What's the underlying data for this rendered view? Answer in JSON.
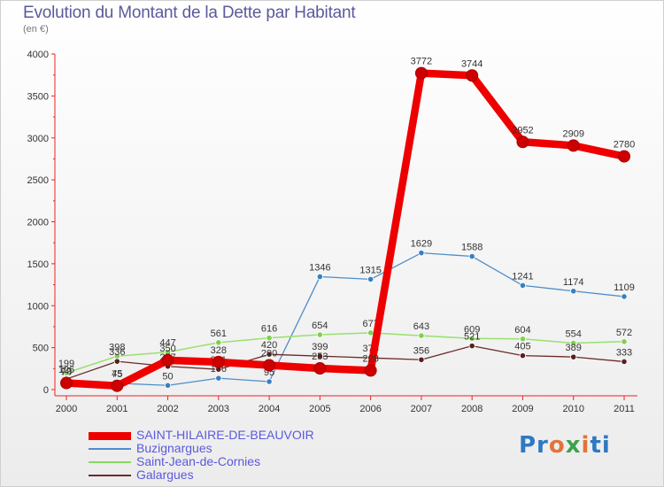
{
  "title": "Evolution du Montant de la Dette par Habitant",
  "subtitle": "(en €)",
  "brand": "Proxiti",
  "chart_data": {
    "type": "line",
    "title": "Evolution du Montant de la Dette par Habitant",
    "subtitle": "(en €)",
    "xlabel": "",
    "ylabel": "",
    "x": [
      "2000",
      "2001",
      "2002",
      "2003",
      "2004",
      "2005",
      "2006",
      "2007",
      "2008",
      "2009",
      "2010",
      "2011"
    ],
    "ylim": [
      0,
      4000
    ],
    "yticks": [
      0,
      500,
      1000,
      1500,
      2000,
      2500,
      3000,
      3500,
      4000
    ],
    "grid": false,
    "legend_position": "bottom",
    "series": [
      {
        "name": "SAINT-HILAIRE-DE-BEAUVOIR",
        "color": "#ee0000",
        "values": [
          79,
          45,
          350,
          328,
          290,
          253,
          228,
          3772,
          3744,
          2952,
          2909,
          2780
        ],
        "labels": [
          "79",
          "45",
          "350",
          "328",
          "290",
          "253",
          "228",
          "3772",
          "3744",
          "2952",
          "2909",
          "2780"
        ]
      },
      {
        "name": "Buzignargues",
        "color": "#4d8ec9",
        "values": [
          98,
          75,
          50,
          136,
          95,
          1346,
          1315,
          1629,
          1588,
          1241,
          1174,
          1109
        ],
        "labels": [
          "98",
          "75",
          "50",
          "136",
          "95",
          "1346",
          "1315",
          "1629",
          "1588",
          "1241",
          "1174",
          "1109"
        ]
      },
      {
        "name": "Saint-Jean-de-Cornies",
        "color": "#88d860",
        "values": [
          199,
          398,
          447,
          561,
          616,
          654,
          677,
          643,
          609,
          604,
          554,
          572
        ],
        "labels": [
          "199",
          "398",
          "447",
          "561",
          "616",
          "654",
          "677",
          "643",
          "609",
          "604",
          "554",
          "572"
        ]
      },
      {
        "name": "Galargues",
        "color": "#6a2a2a",
        "values": [
          126,
          336,
          277,
          241,
          420,
          399,
          378,
          356,
          521,
          405,
          389,
          333
        ],
        "labels": [
          "126",
          "336",
          "277",
          "241",
          "420",
          "399",
          "378",
          "356",
          "521",
          "405",
          "389",
          "333"
        ]
      }
    ]
  }
}
